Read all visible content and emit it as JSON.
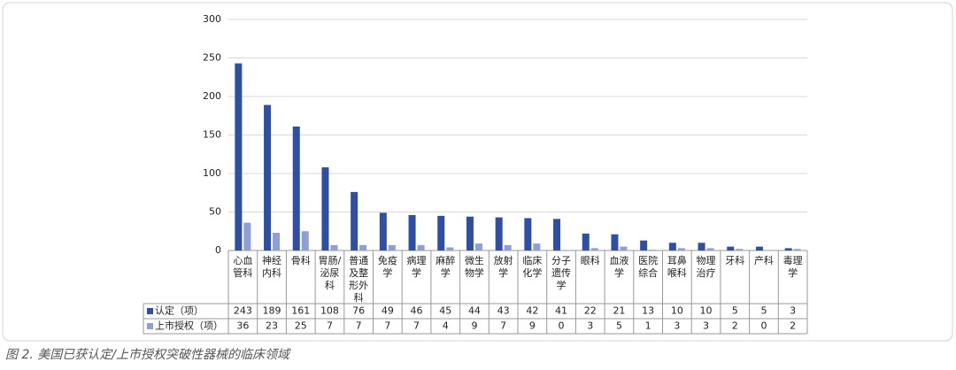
{
  "chart_data": {
    "type": "bar",
    "categories": [
      "心血管科",
      "神经内科",
      "骨科",
      "胃肠/泌尿科",
      "普通及整形外科",
      "免疫学",
      "病理学",
      "麻醉学",
      "微生物学",
      "放射学",
      "临床化学",
      "分子遗传学",
      "眼科",
      "血液学",
      "医院综合",
      "耳鼻喉科",
      "物理治疗",
      "牙科",
      "产科",
      "毒理学"
    ],
    "series": [
      {
        "name": "认定（项）",
        "color": "#2e4fa3",
        "values": [
          243,
          189,
          161,
          108,
          76,
          49,
          46,
          45,
          44,
          43,
          42,
          41,
          22,
          21,
          13,
          10,
          10,
          5,
          5,
          3
        ]
      },
      {
        "name": "上市授权（项）",
        "color": "#8e9fd6",
        "values": [
          36,
          23,
          25,
          7,
          7,
          7,
          7,
          4,
          9,
          7,
          9,
          0,
          3,
          5,
          1,
          3,
          3,
          2,
          0,
          2
        ]
      }
    ],
    "ylim": [
      0,
      300
    ],
    "yticks": [
      0,
      50,
      100,
      150,
      200,
      250,
      300
    ],
    "grid": true,
    "caption": "图 2. 美国已获认定/上市授权突破性器械的临床领域"
  }
}
